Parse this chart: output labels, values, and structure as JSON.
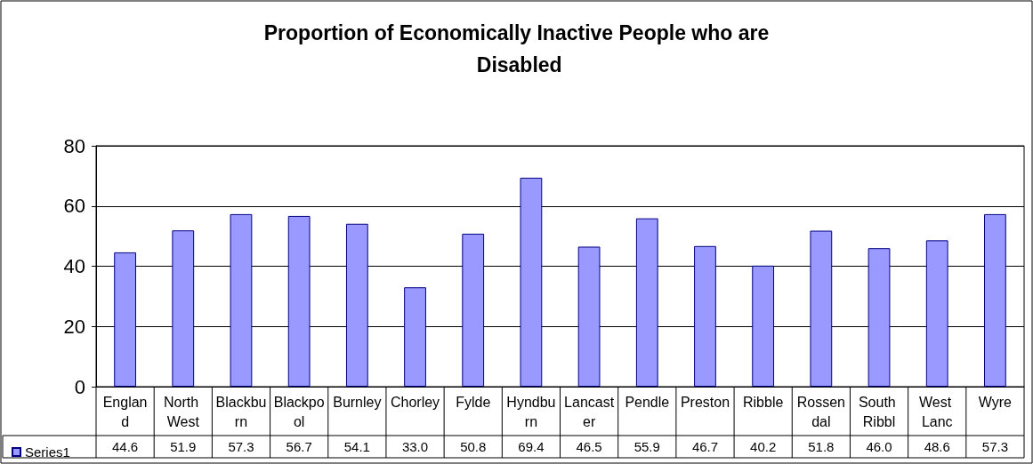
{
  "chart_data": {
    "type": "bar",
    "title": "Proportion of Economically Inactive People who are Disabled",
    "categories": [
      "England",
      "North West",
      "Blackburn",
      "Blackpool",
      "Burnley",
      "Chorley",
      "Fylde",
      "Hyndburn",
      "Lancaster",
      "Pendle",
      "Preston",
      "Ribble",
      "Rossendal",
      "South Ribbl",
      "West Lanc",
      "Wyre"
    ],
    "series": [
      {
        "name": "Series1",
        "color": "#9999ff",
        "values": [
          44.6,
          51.9,
          57.3,
          56.7,
          54.1,
          33.0,
          50.8,
          69.4,
          46.5,
          55.9,
          46.7,
          40.2,
          51.8,
          46.0,
          48.6,
          57.3
        ],
        "value_labels": [
          "44.6",
          "51.9",
          "57.3",
          "56.7",
          "54.1",
          "33.0",
          "50.8",
          "69.4",
          "46.5",
          "55.9",
          "46.7",
          "40.2",
          "51.8",
          "46.0",
          "48.6",
          "57.3"
        ]
      }
    ],
    "ylim": [
      0,
      80
    ],
    "yticks": [
      0,
      20,
      40,
      60,
      80
    ],
    "grid": "y",
    "legend": "bottom left"
  }
}
